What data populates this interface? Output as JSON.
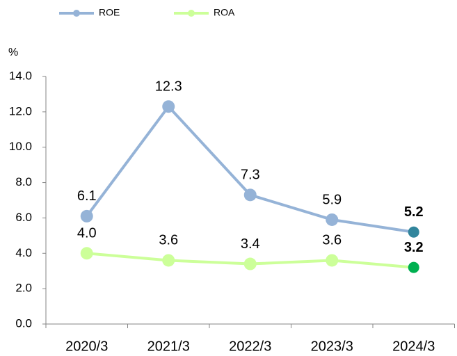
{
  "chart_data": {
    "type": "line",
    "y_label": "%",
    "categories": [
      "2020/3",
      "2021/3",
      "2022/3",
      "2023/3",
      "2024/3"
    ],
    "series": [
      {
        "name": "ROE",
        "color": "#95b3d7",
        "last_point_color": "#31859c",
        "values": [
          6.1,
          12.3,
          7.3,
          5.9,
          5.2
        ],
        "value_labels": [
          "6.1",
          "12.3",
          "7.3",
          "5.9",
          "5.2"
        ]
      },
      {
        "name": "ROA",
        "color": "#ccff99",
        "last_point_color": "#00b050",
        "values": [
          4.0,
          3.6,
          3.4,
          3.6,
          3.2
        ],
        "value_labels": [
          "4.0",
          "3.6",
          "3.4",
          "3.6",
          "3.2"
        ]
      }
    ],
    "ylim": [
      0,
      14
    ],
    "yticks": [
      {
        "value": 0,
        "label": "0.0"
      },
      {
        "value": 2,
        "label": "2.0"
      },
      {
        "value": 4,
        "label": "4.0"
      },
      {
        "value": 6,
        "label": "6.0"
      },
      {
        "value": 8,
        "label": "8.0"
      },
      {
        "value": 10,
        "label": "10.0"
      },
      {
        "value": 12,
        "label": "12.0"
      },
      {
        "value": 14,
        "label": "14.0"
      }
    ],
    "grid": false,
    "legend": "top-left"
  }
}
